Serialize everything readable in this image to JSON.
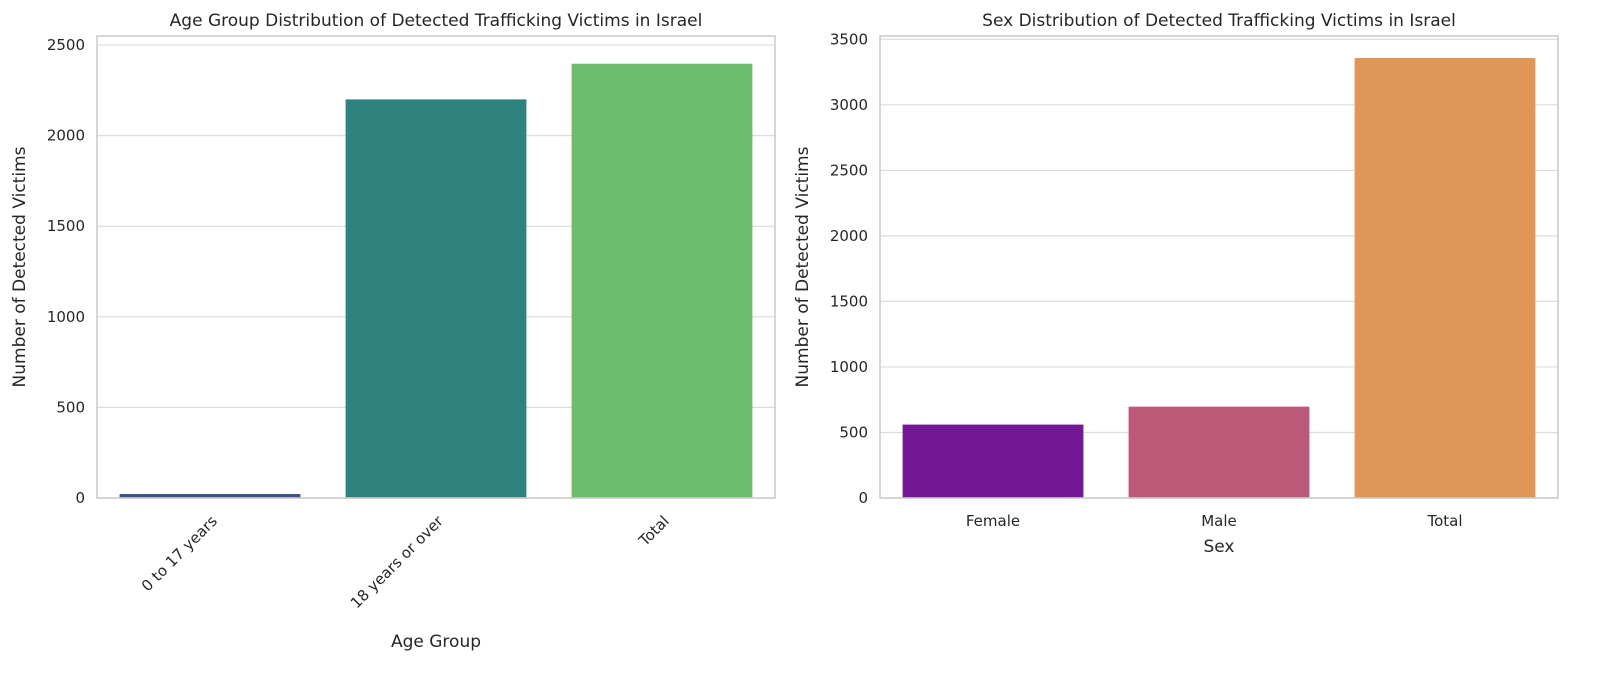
{
  "chart_data": [
    {
      "type": "bar",
      "title": "Age Group Distribution of Detected Trafficking Victims in Israel",
      "xlabel": "Age Group",
      "ylabel": "Number of Detected Victims",
      "categories": [
        "0 to 17 years",
        "18 years or over",
        "Total"
      ],
      "values": [
        22,
        2200,
        2397
      ],
      "colors": [
        "#3b528b",
        "#2e837f",
        "#6cbd6d"
      ],
      "ylim": [
        0,
        2550
      ],
      "yticks": [
        0,
        500,
        1000,
        1500,
        2000,
        2500
      ],
      "xtick_rotation": -45,
      "grid": "y"
    },
    {
      "type": "bar",
      "title": "Sex Distribution of Detected Trafficking Victims in Israel",
      "xlabel": "Sex",
      "ylabel": "Number of Detected Victims",
      "categories": [
        "Female",
        "Male",
        "Total"
      ],
      "values": [
        560,
        697,
        3357
      ],
      "colors": [
        "#721893",
        "#bc5979",
        "#e09657"
      ],
      "ylim": [
        0,
        3525
      ],
      "yticks": [
        0,
        500,
        1000,
        1500,
        2000,
        2500,
        3000,
        3500
      ],
      "xtick_rotation": 0,
      "grid": "y"
    }
  ]
}
